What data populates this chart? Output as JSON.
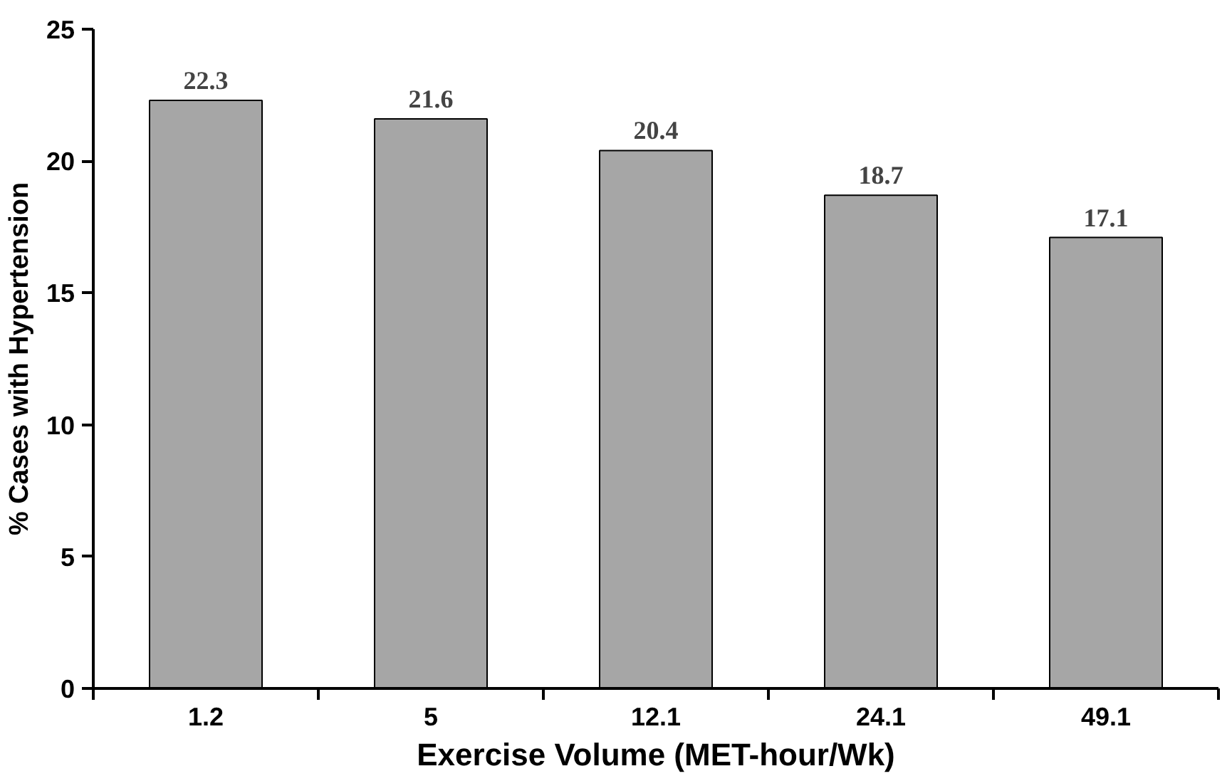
{
  "chart_data": {
    "type": "bar",
    "xlabel": "Exercise Volume (MET-hour/Wk)",
    "ylabel": "% Cases with Hypertension",
    "categories": [
      "1.2",
      "5",
      "12.1",
      "24.1",
      "49.1"
    ],
    "values": [
      22.3,
      21.6,
      20.4,
      18.7,
      17.1
    ],
    "color": "#a6a6a6",
    "ylim": [
      0,
      25
    ],
    "yticks": [
      0,
      5,
      10,
      15,
      20,
      25
    ],
    "grid": false,
    "data_labels": true
  }
}
